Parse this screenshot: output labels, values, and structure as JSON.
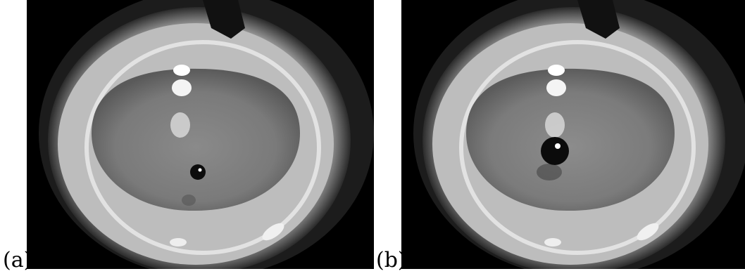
{
  "panels": [
    {
      "label": "(a)",
      "description_icon": "petri-dish-small-droplet"
    },
    {
      "label": "(b)",
      "description_icon": "petri-dish-large-droplet"
    }
  ],
  "colors": {
    "background": "#ffffff",
    "photo_bg": "#000000"
  }
}
